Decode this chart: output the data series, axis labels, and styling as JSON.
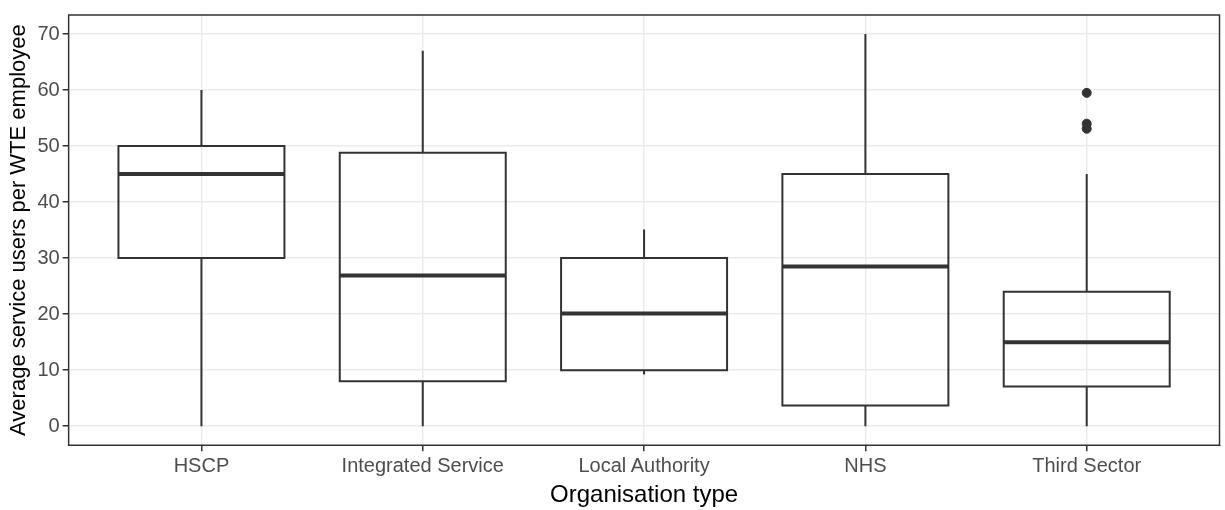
{
  "chart_data": {
    "type": "box",
    "xlabel": "Organisation type",
    "ylabel": "Average service users per WTE employee",
    "categories": [
      "HSCP",
      "Integrated Service",
      "Local Authority",
      "NHS",
      "Third Sector"
    ],
    "boxes": [
      {
        "low": 0,
        "q1": 30,
        "median": 45,
        "q3": 50,
        "high": 60
      },
      {
        "low": 0,
        "q1": 8,
        "median": 26.9,
        "q3": 48.8,
        "high": 67
      },
      {
        "low": 9.2,
        "q1": 10,
        "median": 20.1,
        "q3": 30,
        "high": 35.1
      },
      {
        "low": 0,
        "q1": 3.7,
        "median": 28.5,
        "q3": 45,
        "high": 70
      },
      {
        "low": 0,
        "q1": 7.1,
        "median": 15,
        "q3": 24,
        "high": 45,
        "outliers": [
          59.5,
          54,
          53.1
        ]
      }
    ],
    "color": "#333333",
    "ylim": [
      -3.4,
      73.4
    ],
    "yticks": [
      0,
      10,
      20,
      30,
      40,
      50,
      60,
      70
    ],
    "grid": true
  }
}
